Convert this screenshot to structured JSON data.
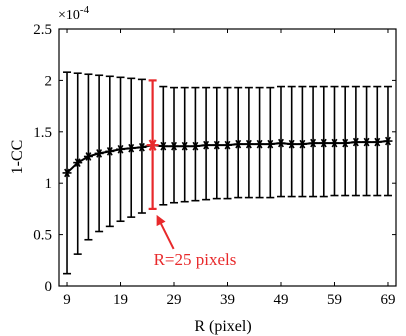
{
  "chart_data": {
    "type": "line",
    "xlabel": "R (pixel)",
    "ylabel": "1-CC",
    "y_multiplier_label": "×10",
    "y_multiplier_exponent": "-4",
    "xlim": [
      7.5,
      70.5
    ],
    "ylim": [
      0,
      2.5
    ],
    "xticks": [
      9,
      19,
      29,
      39,
      49,
      59,
      69
    ],
    "xtick_labels": [
      "9",
      "19",
      "29",
      "39",
      "49",
      "59",
      "69"
    ],
    "yticks": [
      0,
      0.5,
      1,
      1.5,
      2,
      2.5
    ],
    "ytick_labels": [
      "0",
      "0.5",
      "1",
      "1.5",
      "2",
      "2.5"
    ],
    "grid": false,
    "series": [
      {
        "marker": "asterisk",
        "color": "#000000",
        "x": [
          9,
          11,
          13,
          15,
          17,
          19,
          21,
          23,
          25,
          27,
          29,
          31,
          33,
          35,
          37,
          39,
          41,
          43,
          45,
          47,
          49,
          51,
          53,
          55,
          57,
          59,
          61,
          63,
          65,
          67,
          69
        ],
        "mean": [
          1.1,
          1.2,
          1.26,
          1.29,
          1.31,
          1.33,
          1.34,
          1.35,
          1.37,
          1.36,
          1.36,
          1.36,
          1.36,
          1.37,
          1.37,
          1.37,
          1.38,
          1.38,
          1.38,
          1.38,
          1.39,
          1.38,
          1.38,
          1.39,
          1.39,
          1.39,
          1.39,
          1.4,
          1.4,
          1.4,
          1.41
        ],
        "upper": [
          2.08,
          2.07,
          2.06,
          2.05,
          2.04,
          2.03,
          2.02,
          2.01,
          2.0,
          1.94,
          1.93,
          1.93,
          1.93,
          1.93,
          1.93,
          1.93,
          1.93,
          1.93,
          1.93,
          1.93,
          1.94,
          1.94,
          1.94,
          1.94,
          1.94,
          1.94,
          1.94,
          1.94,
          1.94,
          1.94,
          1.94
        ],
        "lower": [
          0.12,
          0.31,
          0.45,
          0.53,
          0.58,
          0.63,
          0.67,
          0.71,
          0.75,
          0.79,
          0.81,
          0.82,
          0.83,
          0.84,
          0.85,
          0.85,
          0.86,
          0.86,
          0.86,
          0.86,
          0.87,
          0.87,
          0.87,
          0.87,
          0.87,
          0.88,
          0.88,
          0.88,
          0.88,
          0.88,
          0.88
        ]
      }
    ],
    "highlight": {
      "x": 25,
      "color": "#e8292b",
      "label": "R=25 pixels"
    }
  }
}
